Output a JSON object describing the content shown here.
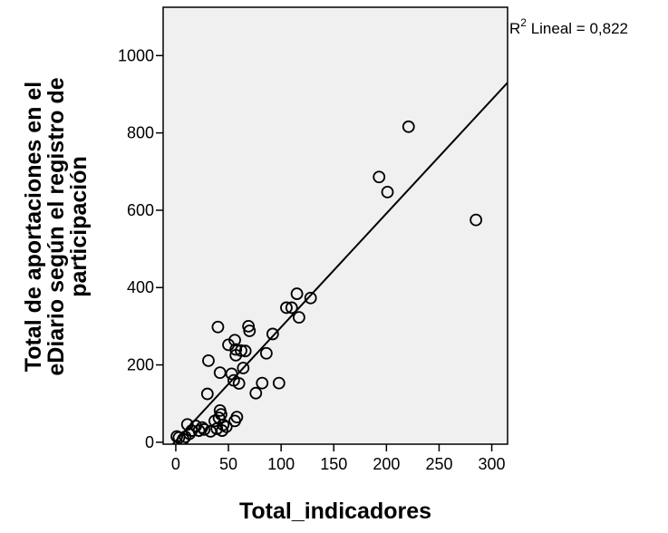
{
  "chart_data": {
    "type": "scatter",
    "title": "",
    "xlabel": "Total_indicadores",
    "ylabel_lines": [
      "Total de aportaciones en el",
      "eDiario según el registro de",
      "participación"
    ],
    "xlim": [
      -12,
      315
    ],
    "ylim": [
      -5,
      1125
    ],
    "xticks": [
      0,
      50,
      100,
      150,
      200,
      250,
      300
    ],
    "yticks": [
      0,
      200,
      400,
      600,
      800,
      1000
    ],
    "grid": false,
    "legend": "none",
    "plot_background": "#f0f0f0",
    "marker_color": "#000000",
    "annotation": {
      "prefix": "R",
      "superscript": "2",
      "suffix": " Lineal = 0,822"
    },
    "fit_line": {
      "x": [
        -8,
        315
      ],
      "y": [
        -20,
        930
      ]
    },
    "points": [
      {
        "x": 1,
        "y": 15
      },
      {
        "x": 3,
        "y": 12
      },
      {
        "x": 7,
        "y": 8
      },
      {
        "x": 9,
        "y": 14
      },
      {
        "x": 11,
        "y": 46
      },
      {
        "x": 13,
        "y": 22
      },
      {
        "x": 15,
        "y": 30
      },
      {
        "x": 19,
        "y": 42
      },
      {
        "x": 22,
        "y": 30
      },
      {
        "x": 25,
        "y": 38
      },
      {
        "x": 27,
        "y": 33
      },
      {
        "x": 30,
        "y": 125
      },
      {
        "x": 31,
        "y": 211
      },
      {
        "x": 33,
        "y": 28
      },
      {
        "x": 37,
        "y": 55
      },
      {
        "x": 39,
        "y": 35
      },
      {
        "x": 40,
        "y": 298
      },
      {
        "x": 41,
        "y": 63
      },
      {
        "x": 42,
        "y": 180
      },
      {
        "x": 42,
        "y": 82
      },
      {
        "x": 43,
        "y": 72
      },
      {
        "x": 44,
        "y": 30
      },
      {
        "x": 45,
        "y": 45
      },
      {
        "x": 48,
        "y": 40
      },
      {
        "x": 50,
        "y": 252
      },
      {
        "x": 53,
        "y": 177
      },
      {
        "x": 55,
        "y": 160
      },
      {
        "x": 56,
        "y": 264
      },
      {
        "x": 56,
        "y": 55
      },
      {
        "x": 57,
        "y": 240
      },
      {
        "x": 57,
        "y": 225
      },
      {
        "x": 58,
        "y": 65
      },
      {
        "x": 60,
        "y": 152
      },
      {
        "x": 62,
        "y": 237
      },
      {
        "x": 64,
        "y": 192
      },
      {
        "x": 66,
        "y": 236
      },
      {
        "x": 69,
        "y": 300
      },
      {
        "x": 70,
        "y": 288
      },
      {
        "x": 76,
        "y": 127
      },
      {
        "x": 82,
        "y": 153
      },
      {
        "x": 86,
        "y": 230
      },
      {
        "x": 92,
        "y": 280
      },
      {
        "x": 98,
        "y": 153
      },
      {
        "x": 105,
        "y": 348
      },
      {
        "x": 110,
        "y": 348
      },
      {
        "x": 115,
        "y": 384
      },
      {
        "x": 117,
        "y": 323
      },
      {
        "x": 128,
        "y": 373
      },
      {
        "x": 193,
        "y": 686
      },
      {
        "x": 201,
        "y": 647
      },
      {
        "x": 221,
        "y": 816
      },
      {
        "x": 285,
        "y": 575
      }
    ]
  }
}
